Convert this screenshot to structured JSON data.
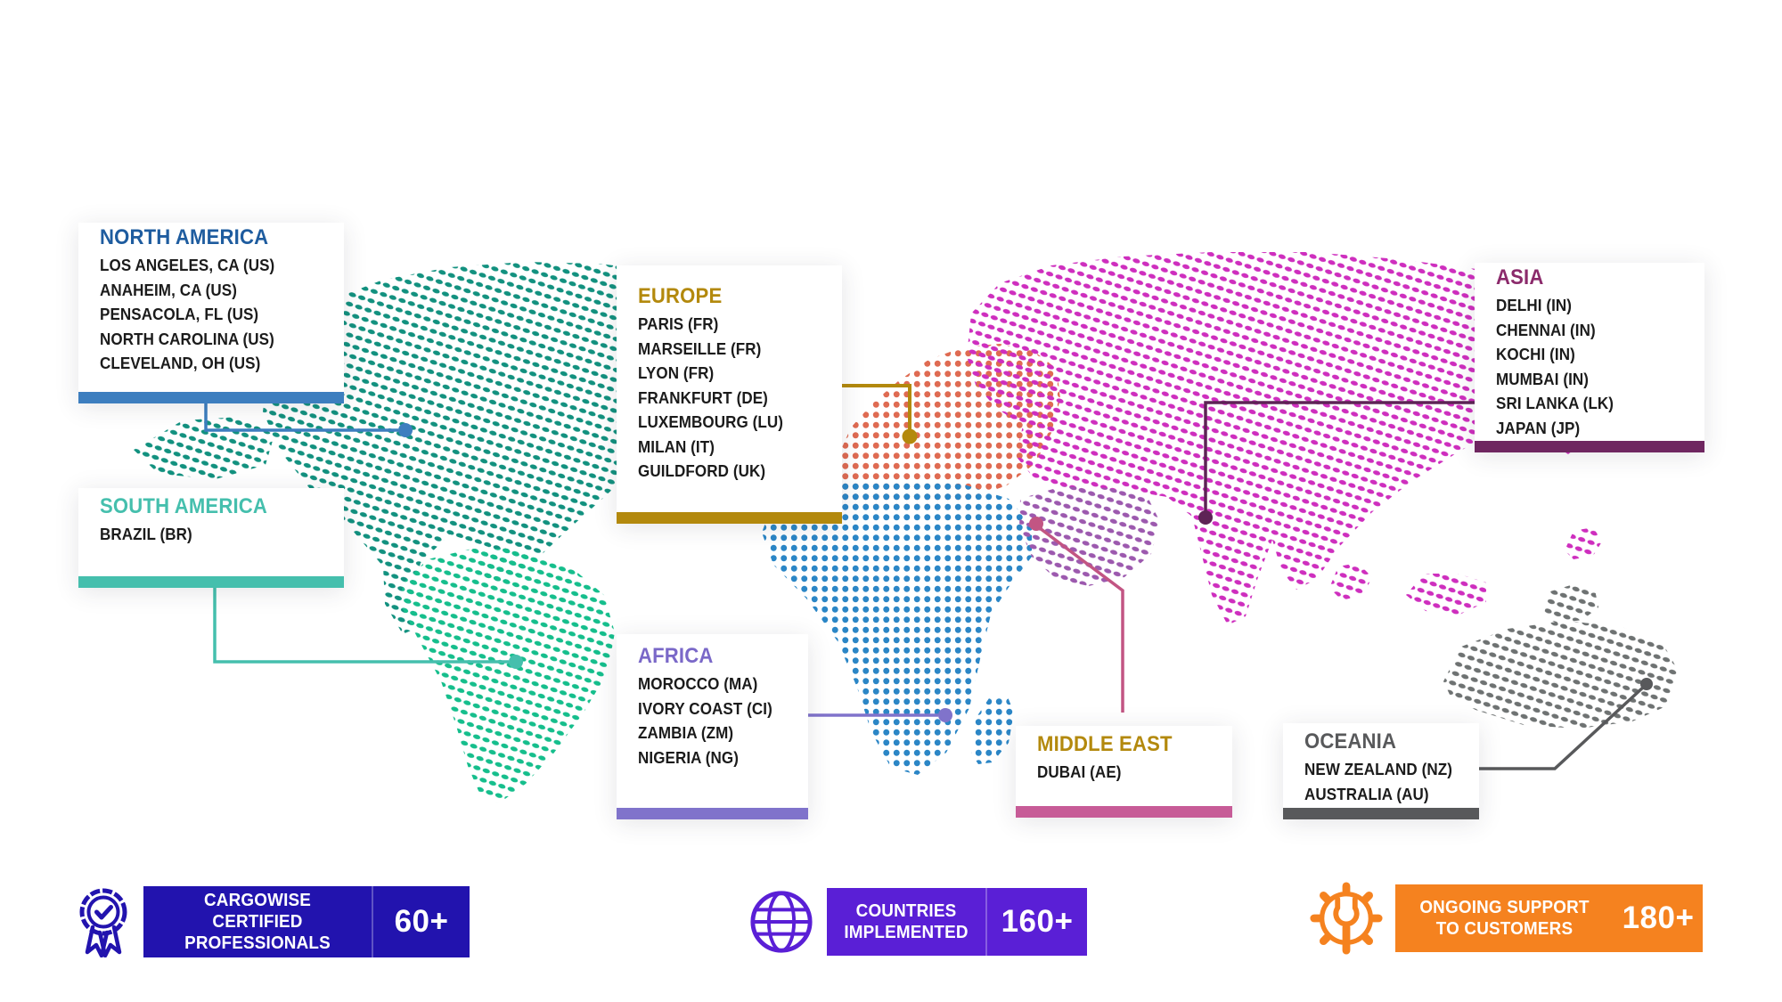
{
  "regions": [
    {
      "key": "north-america",
      "title": "NORTH AMERICA",
      "title_color": "#1E5C9F",
      "accent_color": "#3D7EBF",
      "line_color": "#3D7EBF",
      "locations": [
        "LOS ANGELES, CA (US)",
        "ANAHEIM, CA (US)",
        "PENSACOLA, FL (US)",
        "NORTH CAROLINA (US)",
        "CLEVELAND, OH (US)"
      ]
    },
    {
      "key": "south-america",
      "title": "SOUTH AMERICA",
      "title_color": "#45BFAD",
      "accent_color": "#45BFAD",
      "line_color": "#45BFAD",
      "locations": [
        "BRAZIL (BR)"
      ]
    },
    {
      "key": "europe",
      "title": "EUROPE",
      "title_color": "#B3890D",
      "accent_color": "#B3890D",
      "line_color": "#B3890D",
      "locations": [
        "PARIS (FR)",
        "MARSEILLE (FR)",
        "LYON (FR)",
        "FRANKFURT (DE)",
        "LUXEMBOURG (LU)",
        "MILAN (IT)",
        "GUILDFORD (UK)"
      ]
    },
    {
      "key": "africa",
      "title": "AFRICA",
      "title_color": "#7A68C8",
      "accent_color": "#8073CB",
      "line_color": "#8073CB",
      "locations": [
        "MOROCCO (MA)",
        "IVORY COAST (CI)",
        "ZAMBIA (ZM)",
        "NIGERIA (NG)"
      ]
    },
    {
      "key": "middle-east",
      "title": "MIDDLE EAST",
      "title_color": "#B3890D",
      "accent_color": "#C75C97",
      "line_color": "#C25583",
      "locations": [
        "DUBAI (AE)"
      ]
    },
    {
      "key": "asia",
      "title": "ASIA",
      "title_color": "#8B2A6B",
      "accent_color": "#6F2660",
      "line_color": "#5E2356",
      "locations": [
        "DELHI (IN)",
        "CHENNAI (IN)",
        "KOCHI (IN)",
        "MUMBAI (IN)",
        "SRI LANKA (LK)",
        "JAPAN (JP)"
      ]
    },
    {
      "key": "oceania",
      "title": "OCEANIA",
      "title_color": "#58595B",
      "accent_color": "#58595B",
      "line_color": "#58595B",
      "locations": [
        "NEW ZEALAND (NZ)",
        "AUSTRALIA (AU)"
      ]
    }
  ],
  "stats": [
    {
      "key": "certified-professionals",
      "icon": "award-ribbon-icon",
      "label": "CARGOWISE CERTIFIED PROFESSIONALS",
      "value": "60+",
      "color": "#2213AE"
    },
    {
      "key": "countries-implemented",
      "icon": "globe-icon",
      "label": "COUNTRIES IMPLEMENTED",
      "value": "160+",
      "color": "#5A1FD6"
    },
    {
      "key": "ongoing-support",
      "icon": "gear-wrench-icon",
      "label": "ONGOING SUPPORT TO CUSTOMERS",
      "value": "180+",
      "color": "#F5821F"
    }
  ],
  "map_dot_colors": {
    "north_america": "#12917F",
    "south_america": "#15BE8C",
    "europe": "#DF6B52",
    "africa": "#2B86C6",
    "middle_east": "#9C59AE",
    "asia": "#CE2EBE",
    "oceania": "#6E7272"
  }
}
